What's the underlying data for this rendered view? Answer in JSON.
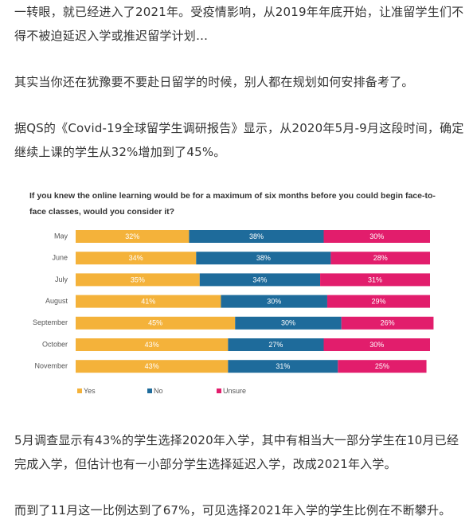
{
  "paragraphs": [
    "一转眼，就已经进入了2021年。受疫情影响，从2019年年底开始，让准留学生们不得不被迫延迟入学或推迟留学计划…",
    "其实当你还在犹豫要不要赴日留学的时候，别人都在规划如何安排备考了。",
    "据QS的《Covid-19全球留学生调研报告》显示，从2020年5月-9月这段时间，确定继续上课的学生从32%增加到了45%。",
    "5月调查显示有43%的学生选择2020年入学，其中有相当大一部分学生在10月已经完成入学，但估计也有一小部分学生选择延迟入学，改成2021年入学。",
    "而到了11月这一比例达到了67%，可见选择2021年入学的学生比例在不断攀升。"
  ],
  "chart_data": {
    "type": "stacked-bar",
    "orientation": "horizontal",
    "title": "If you knew the online learning would be for a maximum of six months before you could begin face-to-face classes, would you consider it?",
    "categories": [
      "May",
      "June",
      "July",
      "August",
      "September",
      "October",
      "November"
    ],
    "xlim": [
      0,
      100
    ],
    "series": [
      {
        "name": "Yes",
        "color": "#f4b23a",
        "values": [
          32,
          34,
          35,
          41,
          45,
          43,
          43
        ],
        "value_labels": [
          "32%",
          "34%",
          "35%",
          "41%",
          "45%",
          "43%",
          "43%"
        ]
      },
      {
        "name": "No",
        "color": "#1e6b9b",
        "values": [
          38,
          38,
          34,
          30,
          30,
          27,
          31
        ],
        "value_labels": [
          "38%",
          "38%",
          "34%",
          "30%",
          "30%",
          "27%",
          "31%"
        ]
      },
      {
        "name": "Unsure",
        "color": "#e21d6c",
        "values": [
          30,
          28,
          31,
          29,
          26,
          30,
          25
        ],
        "value_labels": [
          "30%",
          "28%",
          "31%",
          "29%",
          "26%",
          "30%",
          "25%"
        ]
      }
    ],
    "legend": "bottom"
  }
}
